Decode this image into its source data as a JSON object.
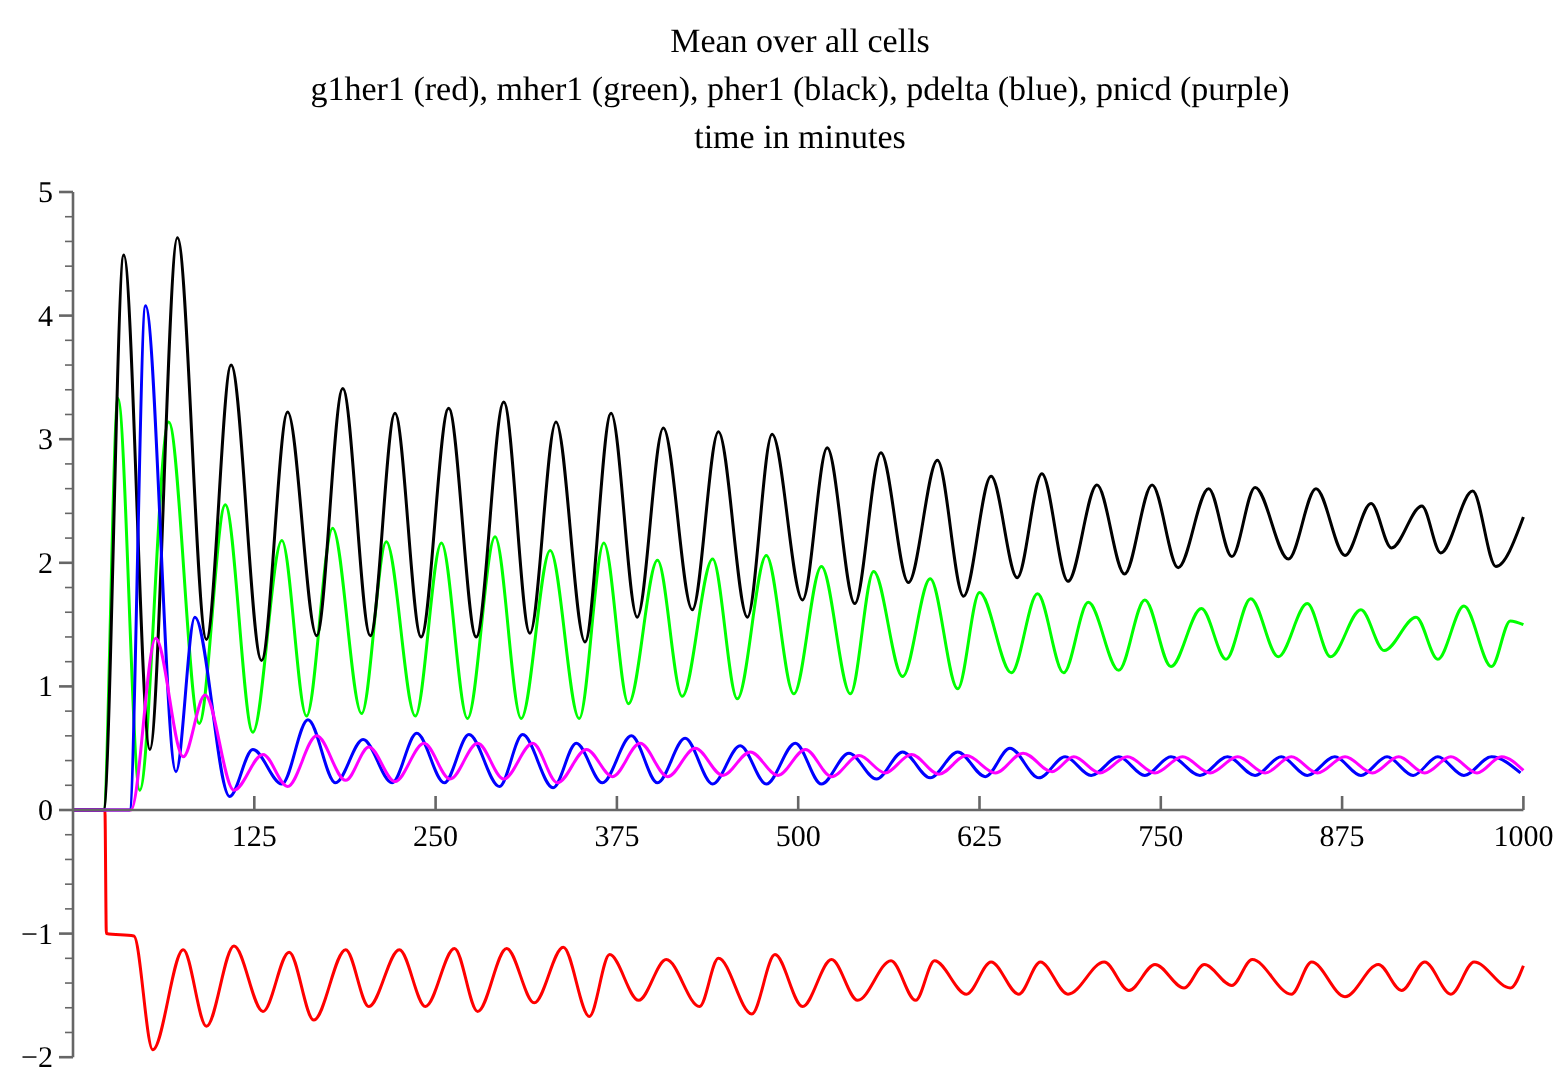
{
  "chart_data": {
    "type": "line",
    "title": "Mean over all cells",
    "subtitle": "g1her1 (red), mher1 (green), pher1 (black), pdelta (blue), pnicd (purple)",
    "xlabel": "time in minutes",
    "xlim": [
      0,
      1000
    ],
    "xticks": [
      125,
      250,
      375,
      500,
      625,
      750,
      875,
      1000
    ],
    "ylim": [
      -2,
      5
    ],
    "yticks": [
      -2,
      -1,
      0,
      1,
      2,
      3,
      4,
      5
    ],
    "marker": "none",
    "line_style": "solid",
    "series": [
      {
        "color": "#ff0000",
        "x": [
          0,
          22,
          23,
          42,
          55,
          76,
          92,
          111,
          131,
          149,
          166,
          188,
          204,
          225,
          243,
          263,
          279,
          299,
          318,
          338,
          356,
          370,
          390,
          409,
          432,
          445,
          468,
          484,
          503,
          523,
          541,
          564,
          581,
          594,
          616,
          633,
          652,
          667,
          686,
          711,
          728,
          746,
          766,
          780,
          799,
          813,
          840,
          854,
          877,
          900,
          916,
          932,
          950,
          966,
          991,
          1000
        ],
        "values": [
          0,
          0,
          -1.0,
          -1.02,
          -1.94,
          -1.13,
          -1.75,
          -1.1,
          -1.63,
          -1.15,
          -1.7,
          -1.13,
          -1.59,
          -1.13,
          -1.59,
          -1.12,
          -1.63,
          -1.12,
          -1.56,
          -1.11,
          -1.67,
          -1.17,
          -1.54,
          -1.21,
          -1.59,
          -1.2,
          -1.65,
          -1.17,
          -1.59,
          -1.21,
          -1.54,
          -1.22,
          -1.54,
          -1.22,
          -1.49,
          -1.23,
          -1.49,
          -1.23,
          -1.49,
          -1.23,
          -1.46,
          -1.25,
          -1.44,
          -1.25,
          -1.42,
          -1.21,
          -1.49,
          -1.23,
          -1.51,
          -1.25,
          -1.46,
          -1.23,
          -1.49,
          -1.23,
          -1.44,
          -1.26
        ]
      },
      {
        "color": "#00ff00",
        "x": [
          0,
          21,
          31,
          46,
          66,
          87,
          105,
          124,
          144,
          161,
          179,
          199,
          216,
          236,
          254,
          272,
          291,
          309,
          329,
          349,
          366,
          383,
          403,
          420,
          441,
          458,
          478,
          497,
          516,
          536,
          552,
          572,
          591,
          610,
          625,
          647,
          665,
          683,
          700,
          721,
          739,
          757,
          778,
          795,
          812,
          831,
          851,
          867,
          888,
          904,
          926,
          941,
          959,
          978,
          991,
          1000
        ],
        "values": [
          0,
          0,
          3.33,
          0.16,
          3.14,
          0.7,
          2.47,
          0.63,
          2.18,
          0.76,
          2.28,
          0.78,
          2.17,
          0.76,
          2.16,
          0.74,
          2.21,
          0.74,
          2.1,
          0.74,
          2.16,
          0.86,
          2.02,
          0.92,
          2.03,
          0.9,
          2.06,
          0.94,
          1.97,
          0.94,
          1.93,
          1.08,
          1.87,
          0.98,
          1.76,
          1.11,
          1.75,
          1.11,
          1.68,
          1.13,
          1.7,
          1.16,
          1.63,
          1.22,
          1.71,
          1.24,
          1.67,
          1.24,
          1.62,
          1.29,
          1.56,
          1.22,
          1.65,
          1.16,
          1.53,
          1.5
        ]
      },
      {
        "color": "#000000",
        "x": [
          0,
          21,
          35,
          53,
          72,
          92,
          109,
          130,
          148,
          168,
          186,
          205,
          222,
          240,
          259,
          278,
          297,
          315,
          333,
          353,
          371,
          389,
          407,
          427,
          445,
          465,
          482,
          503,
          520,
          539,
          557,
          576,
          596,
          614,
          633,
          651,
          668,
          686,
          706,
          725,
          744,
          762,
          783,
          799,
          815,
          838,
          857,
          877,
          895,
          909,
          930,
          943,
          965,
          981,
          1000
        ],
        "values": [
          0,
          0,
          4.49,
          0.49,
          4.63,
          1.38,
          3.6,
          1.21,
          3.22,
          1.41,
          3.41,
          1.41,
          3.21,
          1.4,
          3.25,
          1.4,
          3.3,
          1.43,
          3.14,
          1.36,
          3.21,
          1.56,
          3.09,
          1.62,
          3.06,
          1.56,
          3.04,
          1.7,
          2.93,
          1.67,
          2.89,
          1.84,
          2.83,
          1.73,
          2.7,
          1.88,
          2.72,
          1.85,
          2.63,
          1.91,
          2.63,
          1.96,
          2.6,
          2.05,
          2.61,
          2.03,
          2.6,
          2.06,
          2.48,
          2.12,
          2.46,
          2.08,
          2.58,
          1.97,
          2.37
        ]
      },
      {
        "color": "#0000ff",
        "x": [
          0,
          39,
          50,
          71,
          84,
          108,
          124,
          144,
          162,
          181,
          200,
          220,
          237,
          256,
          273,
          294,
          310,
          331,
          347,
          365,
          385,
          403,
          422,
          441,
          460,
          478,
          498,
          516,
          535,
          554,
          572,
          591,
          610,
          629,
          646,
          666,
          684,
          702,
          721,
          739,
          757,
          777,
          796,
          815,
          833,
          851,
          870,
          888,
          906,
          924,
          941,
          959,
          978,
          998
        ],
        "values": [
          0,
          0,
          4.08,
          0.31,
          1.56,
          0.11,
          0.49,
          0.21,
          0.73,
          0.22,
          0.57,
          0.22,
          0.62,
          0.22,
          0.61,
          0.19,
          0.61,
          0.18,
          0.54,
          0.22,
          0.6,
          0.22,
          0.58,
          0.21,
          0.52,
          0.21,
          0.54,
          0.21,
          0.46,
          0.25,
          0.47,
          0.26,
          0.47,
          0.27,
          0.5,
          0.26,
          0.43,
          0.28,
          0.43,
          0.28,
          0.43,
          0.28,
          0.43,
          0.28,
          0.43,
          0.28,
          0.43,
          0.28,
          0.43,
          0.28,
          0.43,
          0.28,
          0.43,
          0.3
        ]
      },
      {
        "color": "#ff00ff",
        "x": [
          0,
          40,
          57,
          76,
          91,
          111,
          131,
          148,
          168,
          188,
          204,
          222,
          242,
          260,
          279,
          297,
          317,
          334,
          354,
          372,
          391,
          410,
          429,
          448,
          467,
          486,
          505,
          523,
          542,
          560,
          578,
          597,
          616,
          636,
          655,
          675,
          690,
          708,
          727,
          746,
          765,
          784,
          803,
          822,
          840,
          858,
          877,
          896,
          914,
          932,
          950,
          968,
          985,
          1000
        ],
        "values": [
          0,
          0,
          1.39,
          0.43,
          0.93,
          0.16,
          0.45,
          0.19,
          0.6,
          0.24,
          0.51,
          0.23,
          0.54,
          0.25,
          0.54,
          0.25,
          0.54,
          0.22,
          0.49,
          0.27,
          0.54,
          0.27,
          0.5,
          0.28,
          0.47,
          0.28,
          0.49,
          0.27,
          0.44,
          0.3,
          0.45,
          0.29,
          0.44,
          0.3,
          0.46,
          0.31,
          0.43,
          0.3,
          0.43,
          0.3,
          0.43,
          0.3,
          0.43,
          0.3,
          0.43,
          0.3,
          0.43,
          0.3,
          0.43,
          0.3,
          0.43,
          0.3,
          0.43,
          0.32
        ]
      }
    ]
  }
}
